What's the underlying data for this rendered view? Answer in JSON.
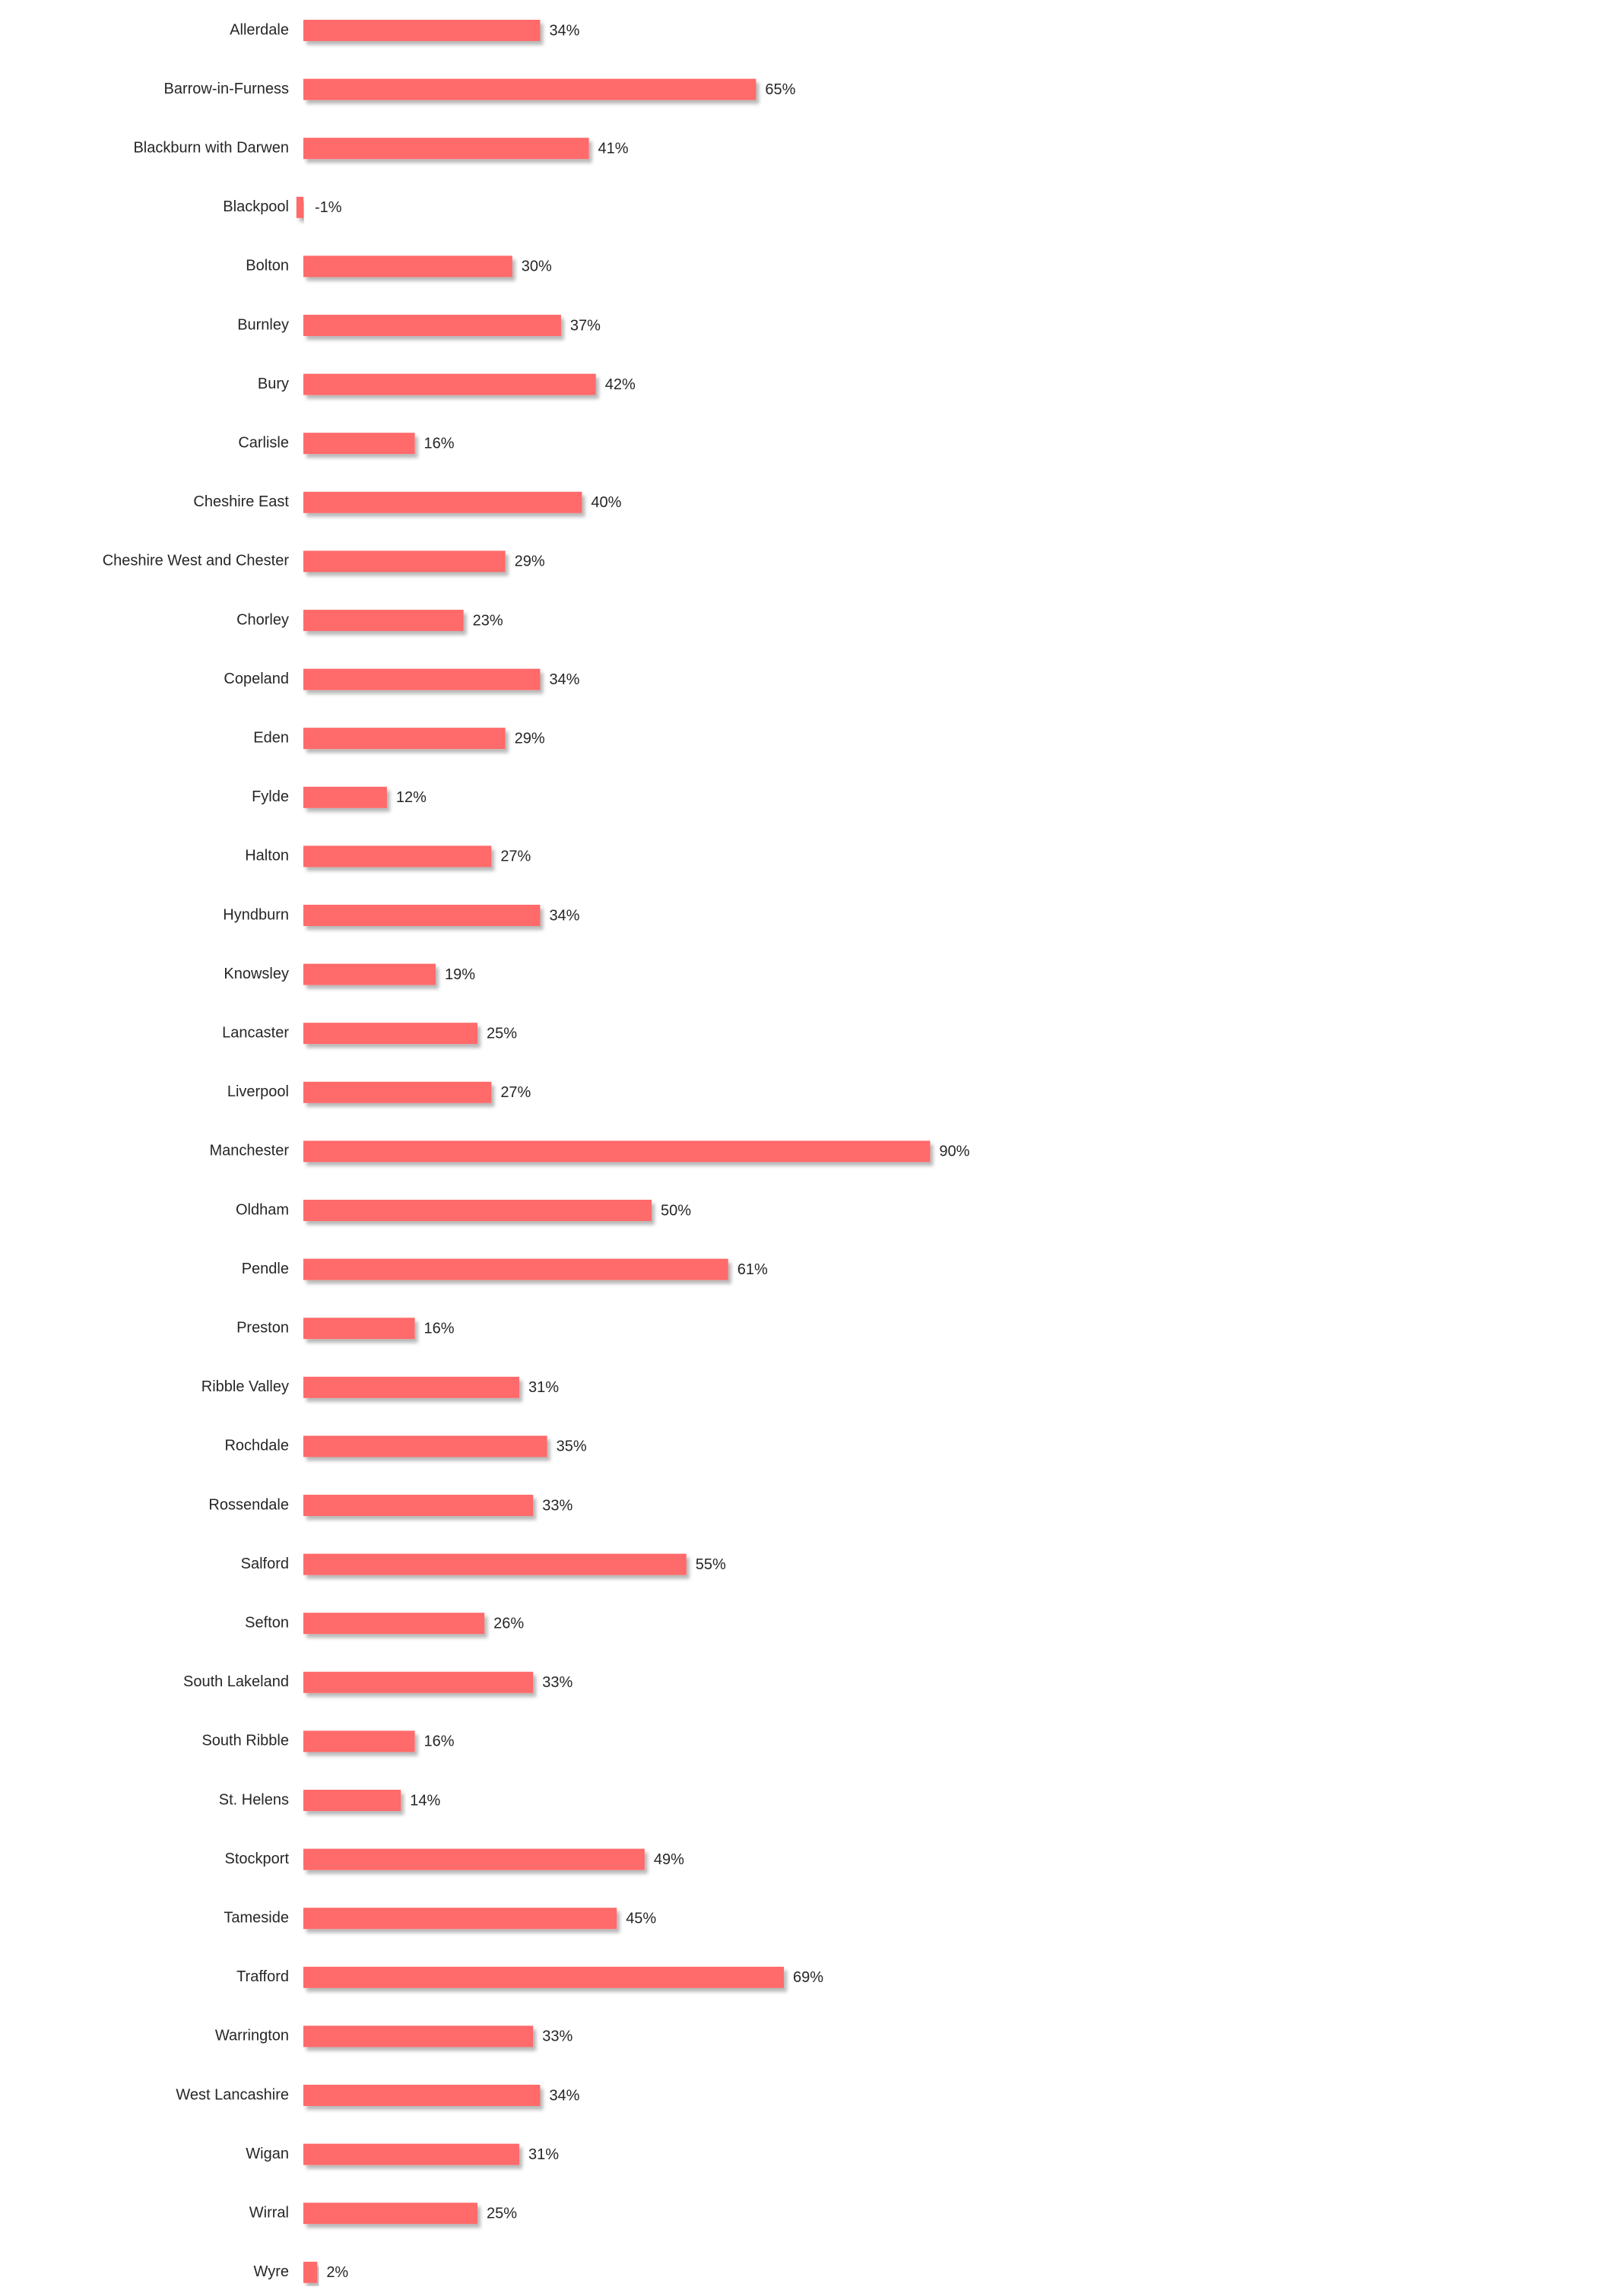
{
  "chart_data": {
    "type": "bar",
    "orientation": "horizontal",
    "title": "",
    "xlabel": "",
    "ylabel": "",
    "grid": false,
    "legend": "none",
    "value_suffix": "%",
    "bar_color": "#FF6B6B",
    "xlim": [
      -1,
      90
    ],
    "categories": [
      "Allerdale",
      "Barrow-in-Furness",
      "Blackburn with Darwen",
      "Blackpool",
      "Bolton",
      "Burnley",
      "Bury",
      "Carlisle",
      "Cheshire East",
      "Cheshire West and Chester",
      "Chorley",
      "Copeland",
      "Eden",
      "Fylde",
      "Halton",
      "Hyndburn",
      "Knowsley",
      "Lancaster",
      "Liverpool",
      "Manchester",
      "Oldham",
      "Pendle",
      "Preston",
      "Ribble Valley",
      "Rochdale",
      "Rossendale",
      "Salford",
      "Sefton",
      "South Lakeland",
      "South Ribble",
      "St. Helens",
      "Stockport",
      "Tameside",
      "Trafford",
      "Warrington",
      "West Lancashire",
      "Wigan",
      "Wirral",
      "Wyre"
    ],
    "values": [
      34,
      65,
      41,
      -1,
      30,
      37,
      42,
      16,
      40,
      29,
      23,
      34,
      29,
      12,
      27,
      34,
      19,
      25,
      27,
      90,
      50,
      61,
      16,
      31,
      35,
      33,
      55,
      26,
      33,
      16,
      14,
      49,
      45,
      69,
      33,
      34,
      31,
      25,
      2
    ],
    "data_labels": [
      "34%",
      "65%",
      "41%",
      "-1%",
      "30%",
      "37%",
      "42%",
      "16%",
      "40%",
      "29%",
      "23%",
      "34%",
      "29%",
      "12%",
      "27%",
      "34%",
      "19%",
      "25%",
      "27%",
      "90%",
      "50%",
      "61%",
      "16%",
      "31%",
      "35%",
      "33%",
      "55%",
      "26%",
      "33%",
      "16%",
      "14%",
      "49%",
      "45%",
      "69%",
      "33%",
      "34%",
      "31%",
      "25%",
      "2%"
    ]
  }
}
